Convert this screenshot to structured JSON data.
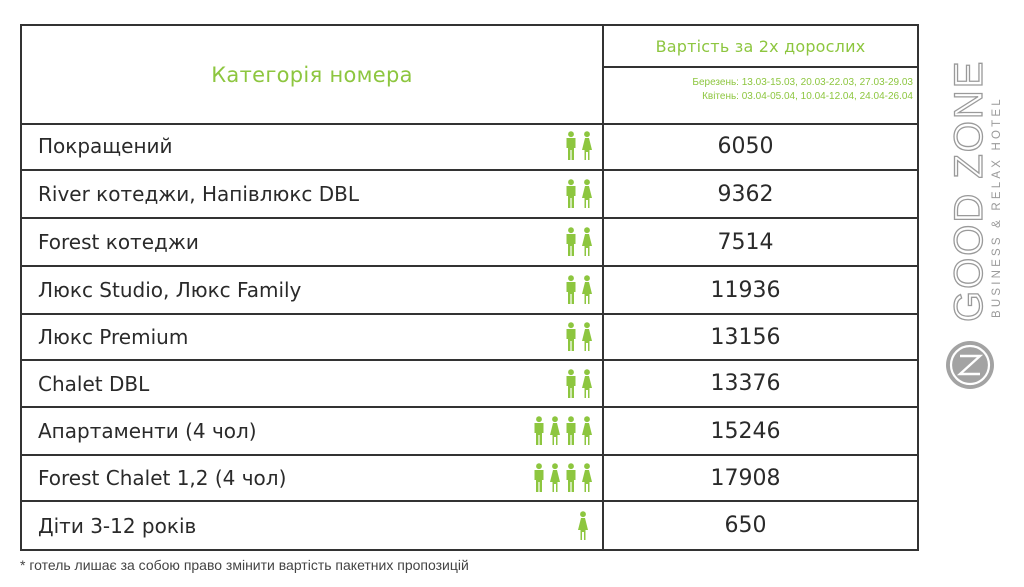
{
  "header": {
    "category_label": "Категорія номера",
    "price_title": "Вартість за 2х дорослих",
    "dates_line1": "Березень: 13.03-15.03, 20.03-22.03, 27.03-29.03",
    "dates_line2": "Квітень: 03.04-05.04, 10.04-12.04, 24.04-26.04"
  },
  "rows": [
    {
      "name": "Покращений",
      "price": "6050",
      "people": [
        "male",
        "female"
      ]
    },
    {
      "name": "River котеджи, Напівлюкс DBL",
      "price": "9362",
      "people": [
        "male",
        "female"
      ]
    },
    {
      "name": "Forest  котеджи",
      "price": "7514",
      "people": [
        "male",
        "female"
      ]
    },
    {
      "name": "Люкс Studio, Люкс Family",
      "price": "11936",
      "people": [
        "male",
        "female"
      ]
    },
    {
      "name": "Люкс Premium",
      "price": "13156",
      "people": [
        "male",
        "female"
      ]
    },
    {
      "name": "Chalet DBL",
      "price": "13376",
      "people": [
        "male",
        "female"
      ]
    },
    {
      "name": "Апартаменти (4 чол)",
      "price": "15246",
      "people": [
        "male",
        "female",
        "male",
        "female"
      ]
    },
    {
      "name": "Forest Chalet 1,2 (4 чол)",
      "price": "17908",
      "people": [
        "male",
        "female",
        "male",
        "female"
      ]
    },
    {
      "name": "Діти 3-12 років",
      "price": "650",
      "people": [
        "female"
      ]
    }
  ],
  "logo": {
    "brand": "GOOD ZONE",
    "tagline": "BUSINESS & RELAX HOTEL",
    "monogram": "GZ"
  },
  "footnote": "* готель лишає за собою право змінити вартість пакетних пропозицій",
  "colors": {
    "accent_green": "#8dc63f",
    "logo_gray": "#9a9a9a"
  }
}
